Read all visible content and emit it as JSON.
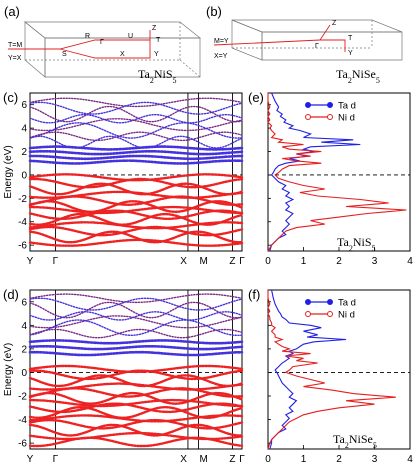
{
  "panels": {
    "a": {
      "label": "(a)",
      "compound": "Ta₂NiS₅",
      "bz_labels": [
        "Γ",
        "Z",
        "T",
        "Y",
        "S",
        "R",
        "U",
        "X",
        "T=M",
        "Y=X"
      ]
    },
    "b": {
      "label": "(b)",
      "compound": "Ta₂NiSe₅",
      "bz_labels": [
        "Γ",
        "Z",
        "T",
        "Y",
        "M=Y",
        "X=Y"
      ]
    },
    "c": {
      "label": "(c)"
    },
    "d": {
      "label": "(d)"
    },
    "e": {
      "label": "(e)",
      "compound": "Ta₂NiS₅"
    },
    "f": {
      "label": "(f)",
      "compound": "Ta₂NiSe₅"
    }
  },
  "colors": {
    "ta": "#1f1fe6",
    "ni": "#e61e1e",
    "band_purple": "#7a2a86",
    "band_blue": "#4433dd",
    "band_red": "#ee2222"
  },
  "chart_data": [
    {
      "id": "c",
      "type": "line",
      "title": "",
      "ylabel": "Energy (eV)",
      "ylim": [
        -6.5,
        7
      ],
      "yticks": [
        6,
        4,
        2,
        0,
        -2,
        -4,
        -6
      ],
      "kpath": [
        "Y",
        "Γ",
        "X",
        "M",
        "Z",
        "Γ"
      ],
      "kpos": [
        0,
        0.12,
        0.745,
        0.795,
        0.955,
        1.0
      ],
      "fermi": 0,
      "conduction_bands": [
        6.2,
        5.7,
        5.2,
        4.8,
        4.3,
        3.8,
        3.3,
        2.8
      ],
      "flat_bands": [
        2.3,
        1.9,
        1.5,
        1.1
      ],
      "valence_bands": [
        -0.2,
        -0.7,
        -1.2,
        -1.7,
        -2.2,
        -2.7,
        -3.0,
        -3.4,
        -3.8,
        -4.3,
        -4.8,
        -5.3,
        -5.8
      ]
    },
    {
      "id": "d",
      "type": "line",
      "title": "",
      "ylabel": "Energy (eV)",
      "ylim": [
        -6.5,
        7
      ],
      "yticks": [
        6,
        4,
        2,
        0,
        -2,
        -4,
        -6
      ],
      "kpath": [
        "Y",
        "Γ",
        "X",
        "M",
        "Z",
        "Γ"
      ],
      "kpos": [
        0,
        0.12,
        0.745,
        0.795,
        0.955,
        1.0
      ],
      "fermi": 0,
      "conduction_bands": [
        6.3,
        5.8,
        5.3,
        4.8,
        4.3,
        3.8,
        3.3
      ],
      "flat_bands": [
        2.6,
        2.1,
        1.6
      ],
      "valence_bands": [
        0.3,
        -0.2,
        -0.7,
        -1.2,
        -1.7,
        -2.2,
        -2.6,
        -3.0,
        -3.4,
        -3.9,
        -4.4,
        -4.9,
        -5.4,
        -5.9
      ]
    },
    {
      "id": "e",
      "type": "line",
      "title": "",
      "xlim": [
        0,
        4
      ],
      "xticks": [
        0,
        1,
        2,
        3,
        4
      ],
      "ylim": [
        -6.5,
        7
      ],
      "series": [
        {
          "name": "Ta d",
          "color": "#1f1fe6",
          "energy": [
            7,
            6.3,
            5.8,
            5.5,
            5.2,
            5.0,
            4.7,
            4.5,
            4.2,
            4.0,
            3.8,
            3.5,
            3.2,
            3.0,
            2.8,
            2.6,
            2.4,
            2.2,
            2.0,
            1.8,
            1.6,
            1.4,
            1.2,
            1.0,
            0.8,
            0.5,
            0.2,
            0.0,
            -0.3,
            -0.6,
            -0.9,
            -1.2,
            -1.5,
            -1.8,
            -2.1,
            -2.4,
            -2.7,
            -3.0,
            -3.3,
            -3.6,
            -3.9,
            -4.2,
            -4.5,
            -4.8,
            -5.1,
            -5.4,
            -5.7,
            -6.0,
            -6.5
          ],
          "dos": [
            0.1,
            0.2,
            0.3,
            0.25,
            0.4,
            0.35,
            0.5,
            0.45,
            0.7,
            0.6,
            0.9,
            1.2,
            1.0,
            2.4,
            1.5,
            2.6,
            1.2,
            1.0,
            1.3,
            0.8,
            1.1,
            0.6,
            0.9,
            0.5,
            0.3,
            0.2,
            0.15,
            0.1,
            0.2,
            0.3,
            0.5,
            0.4,
            0.6,
            0.5,
            0.7,
            0.5,
            0.6,
            0.5,
            0.7,
            0.6,
            0.5,
            0.6,
            0.5,
            0.4,
            0.5,
            0.3,
            0.2,
            0.1,
            0.05
          ]
        },
        {
          "name": "Ni d",
          "color": "#e61e1e",
          "energy": [
            7,
            6.3,
            5.8,
            5.5,
            5.2,
            5.0,
            4.7,
            4.5,
            4.2,
            4.0,
            3.8,
            3.5,
            3.2,
            3.0,
            2.8,
            2.6,
            2.4,
            2.2,
            2.0,
            1.8,
            1.6,
            1.4,
            1.2,
            1.0,
            0.8,
            0.5,
            0.2,
            0.0,
            -0.3,
            -0.6,
            -0.9,
            -1.2,
            -1.5,
            -1.8,
            -2.1,
            -2.4,
            -2.7,
            -3.0,
            -3.3,
            -3.6,
            -3.9,
            -4.2,
            -4.5,
            -4.8,
            -5.1,
            -5.4,
            -5.7,
            -6.0,
            -6.5
          ],
          "dos": [
            0.0,
            0.0,
            0.05,
            0.0,
            0.05,
            0.0,
            0.05,
            0.0,
            0.1,
            0.05,
            0.1,
            0.2,
            0.1,
            0.4,
            0.3,
            1.0,
            0.4,
            0.6,
            1.5,
            0.8,
            1.2,
            0.4,
            0.8,
            1.5,
            0.6,
            0.4,
            0.3,
            0.2,
            0.3,
            0.6,
            1.0,
            1.6,
            0.9,
            1.4,
            2.6,
            3.4,
            2.2,
            3.9,
            2.8,
            2.0,
            1.2,
            1.6,
            0.8,
            0.5,
            0.4,
            0.3,
            0.2,
            0.1,
            0.0
          ]
        }
      ]
    },
    {
      "id": "f",
      "type": "line",
      "title": "",
      "xlim": [
        0,
        4
      ],
      "xticks": [
        0,
        1,
        2,
        3,
        4
      ],
      "ylim": [
        -6.5,
        7
      ],
      "series": [
        {
          "name": "Ta d",
          "color": "#1f1fe6",
          "energy": [
            7,
            6.3,
            5.8,
            5.5,
            5.2,
            5.0,
            4.7,
            4.5,
            4.2,
            4.0,
            3.8,
            3.5,
            3.2,
            3.0,
            2.8,
            2.6,
            2.4,
            2.2,
            2.0,
            1.8,
            1.6,
            1.4,
            1.2,
            1.0,
            0.8,
            0.5,
            0.2,
            0.0,
            -0.3,
            -0.6,
            -0.9,
            -1.2,
            -1.5,
            -1.8,
            -2.1,
            -2.4,
            -2.7,
            -3.0,
            -3.3,
            -3.6,
            -3.9,
            -4.2,
            -4.5,
            -4.8,
            -5.1,
            -5.4,
            -5.7,
            -6.0,
            -6.5
          ],
          "dos": [
            0.1,
            0.15,
            0.2,
            0.25,
            0.3,
            0.35,
            0.4,
            0.5,
            0.6,
            1.2,
            1.5,
            1.0,
            1.4,
            1.1,
            2.2,
            1.3,
            1.0,
            0.9,
            0.8,
            0.6,
            0.7,
            0.5,
            0.6,
            0.5,
            0.4,
            0.3,
            0.2,
            0.25,
            0.3,
            0.35,
            0.4,
            0.5,
            0.6,
            0.7,
            0.6,
            0.8,
            0.7,
            0.6,
            0.7,
            0.5,
            0.6,
            0.5,
            0.4,
            0.5,
            0.3,
            0.2,
            0.1,
            0.1,
            0.05
          ]
        },
        {
          "name": "Ni d",
          "color": "#e61e1e",
          "energy": [
            7,
            6.3,
            5.8,
            5.5,
            5.2,
            5.0,
            4.7,
            4.5,
            4.2,
            4.0,
            3.8,
            3.5,
            3.2,
            3.0,
            2.8,
            2.6,
            2.4,
            2.2,
            2.0,
            1.8,
            1.6,
            1.4,
            1.2,
            1.0,
            0.8,
            0.5,
            0.2,
            0.0,
            -0.3,
            -0.6,
            -0.9,
            -1.2,
            -1.5,
            -1.8,
            -2.1,
            -2.4,
            -2.7,
            -3.0,
            -3.3,
            -3.6,
            -3.9,
            -4.2,
            -4.5,
            -4.8,
            -5.1,
            -5.4,
            -5.7,
            -6.0,
            -6.5
          ],
          "dos": [
            0.0,
            0.0,
            0.05,
            0.0,
            0.05,
            0.0,
            0.05,
            0.05,
            0.1,
            0.1,
            0.2,
            0.1,
            0.2,
            0.2,
            0.4,
            0.2,
            0.3,
            0.4,
            0.6,
            0.4,
            1.2,
            0.5,
            1.0,
            0.8,
            1.4,
            0.7,
            0.6,
            0.5,
            0.8,
            1.2,
            1.6,
            1.0,
            1.8,
            2.4,
            3.6,
            2.2,
            3.0,
            2.0,
            1.4,
            1.0,
            0.8,
            0.6,
            0.5,
            0.4,
            0.3,
            0.2,
            0.1,
            0.05,
            0.0
          ]
        }
      ]
    }
  ]
}
